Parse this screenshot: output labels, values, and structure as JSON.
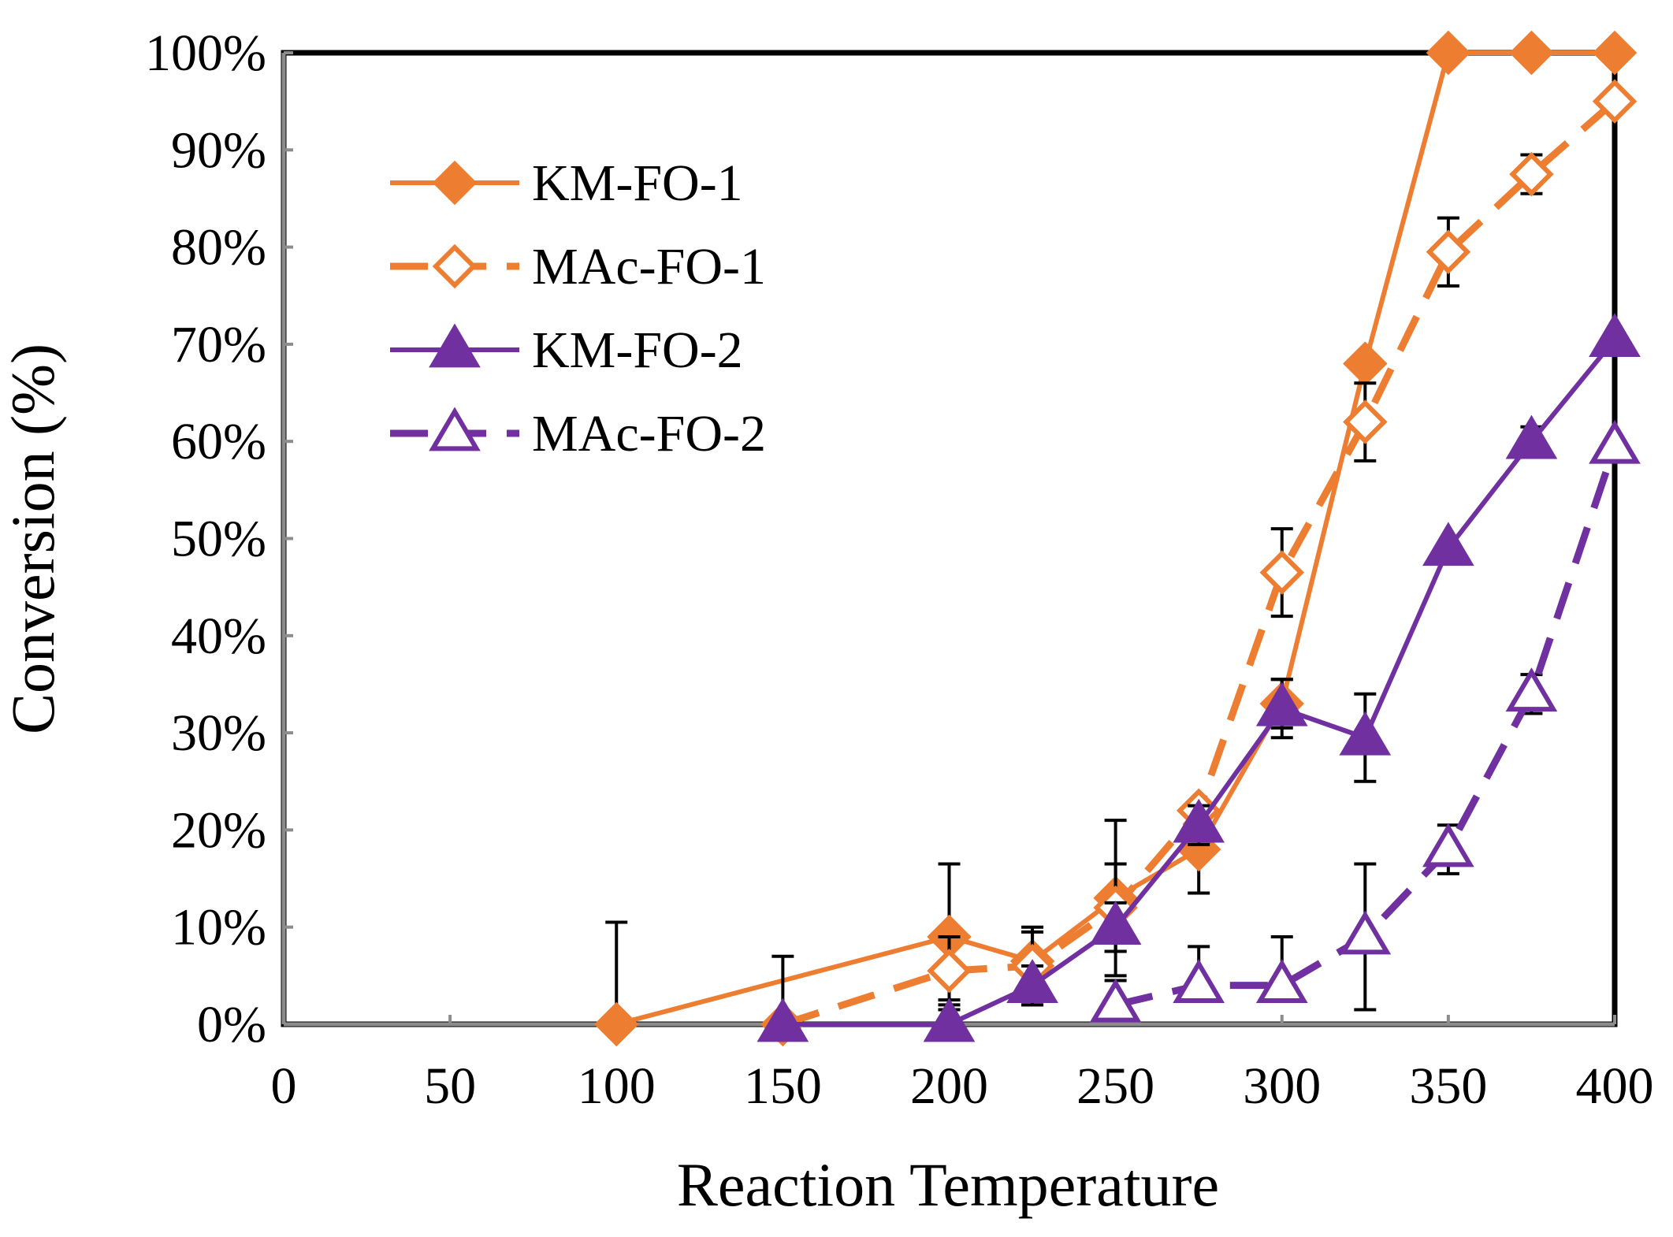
{
  "chart_data": {
    "type": "line",
    "title": "",
    "xlabel": "Reaction Temperature",
    "ylabel": "Conversion (%)",
    "xlim": [
      0,
      400
    ],
    "ylim": [
      0,
      100
    ],
    "x_ticks": [
      "0",
      "50",
      "100",
      "150",
      "200",
      "250",
      "300",
      "350",
      "400"
    ],
    "y_ticks": [
      "0%",
      "10%",
      "20%",
      "30%",
      "40%",
      "50%",
      "60%",
      "70%",
      "80%",
      "90%",
      "100%"
    ],
    "grid": false,
    "legend_position": "top-left",
    "series": [
      {
        "name": "KM-FO-1",
        "color": "#ED7D31",
        "dash": false,
        "marker": "diamond",
        "filled": true,
        "x": [
          100,
          200,
          225,
          250,
          275,
          300,
          325,
          350,
          375,
          400
        ],
        "y": [
          0,
          9,
          6.5,
          13,
          18,
          33,
          68,
          100,
          100,
          100
        ],
        "err": [
          10.5,
          7.5,
          3,
          8,
          4.5,
          2.5,
          0,
          0,
          0,
          0
        ]
      },
      {
        "name": "MAc-FO-1",
        "color": "#ED7D31",
        "dash": true,
        "marker": "diamond",
        "filled": false,
        "x": [
          150,
          200,
          225,
          250,
          275,
          300,
          325,
          350,
          375,
          400
        ],
        "y": [
          0,
          5.5,
          6,
          12,
          22,
          46.5,
          62,
          79.5,
          87.5,
          95
        ],
        "err": [
          7,
          3.5,
          4,
          4.5,
          1,
          4.5,
          4,
          3.5,
          2,
          1
        ]
      },
      {
        "name": "KM-FO-2",
        "color": "#7030A0",
        "dash": false,
        "marker": "triangle",
        "filled": true,
        "x": [
          150,
          200,
          225,
          250,
          275,
          300,
          325,
          350,
          375,
          400
        ],
        "y": [
          0,
          0,
          4,
          10,
          20.5,
          32.5,
          29.5,
          49,
          60,
          70.5
        ],
        "err": [
          0,
          2.5,
          2,
          2.5,
          2,
          3,
          4.5,
          0,
          1.5,
          0
        ]
      },
      {
        "name": "MAc-FO-2",
        "color": "#7030A0",
        "dash": true,
        "marker": "triangle",
        "filled": false,
        "x": [
          250,
          275,
          300,
          325,
          350,
          375,
          400
        ],
        "y": [
          2,
          4,
          4,
          9,
          18,
          34,
          59.5
        ],
        "err": [
          2.5,
          4,
          5,
          7.5,
          2.5,
          2,
          0
        ]
      }
    ]
  }
}
